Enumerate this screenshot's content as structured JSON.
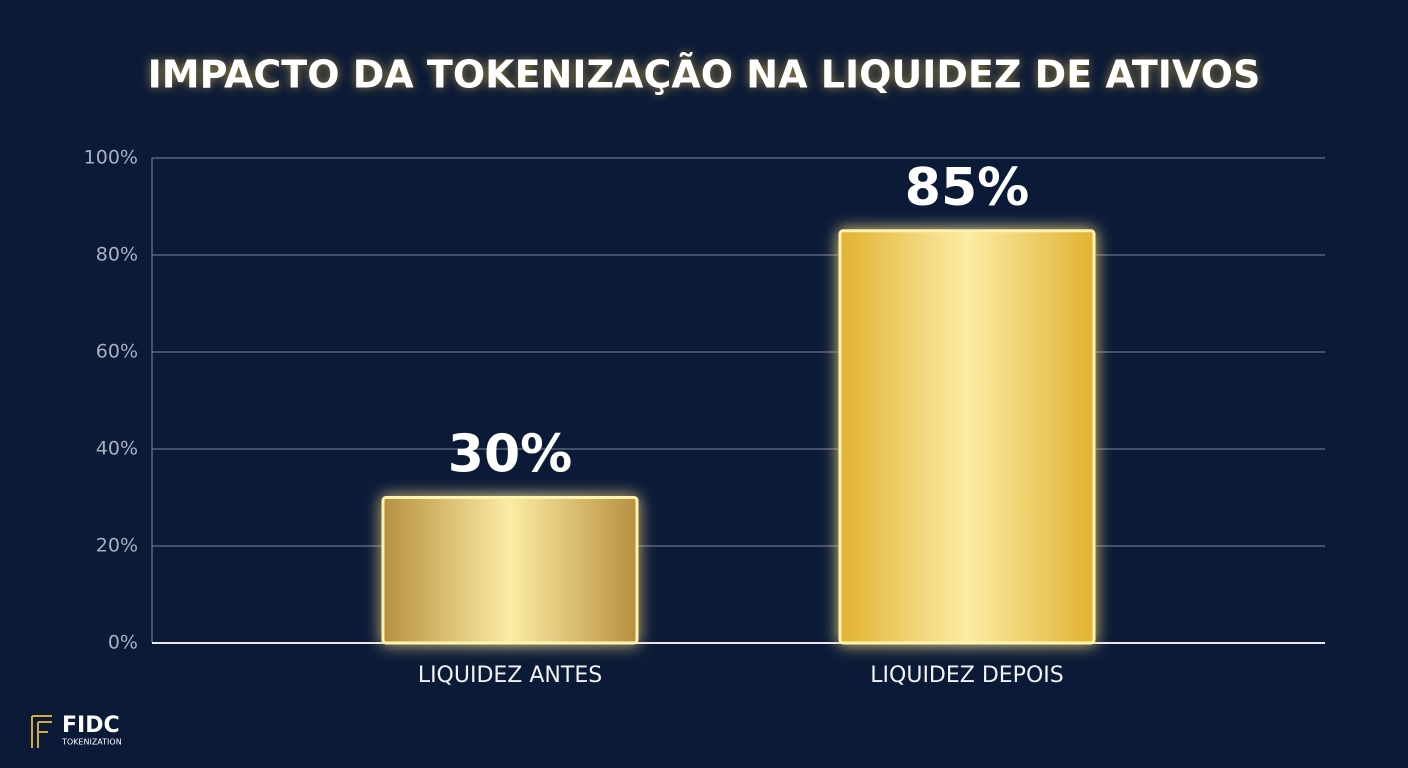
{
  "chart_data": {
    "type": "bar",
    "title": "IMPACTO DA TOKENIZAÇÃO NA LIQUIDEZ DE ATIVOS",
    "categories": [
      "LIQUIDEZ ANTES",
      "LIQUIDEZ DEPOIS"
    ],
    "values": [
      30,
      85
    ],
    "value_labels": [
      "30%",
      "85%"
    ],
    "colors": [
      "#b8903f",
      "#e2b232"
    ],
    "ylim": [
      0,
      100
    ],
    "yticks": [
      {
        "value": 0,
        "label": "0%"
      },
      {
        "value": 20,
        "label": "20%"
      },
      {
        "value": 40,
        "label": "40%"
      },
      {
        "value": 60,
        "label": "60%"
      },
      {
        "value": 80,
        "label": "80%"
      },
      {
        "value": 100,
        "label": "100%"
      }
    ],
    "grid": true
  },
  "logo": {
    "name": "FIDC",
    "tagline": "TOKENIZATION"
  }
}
